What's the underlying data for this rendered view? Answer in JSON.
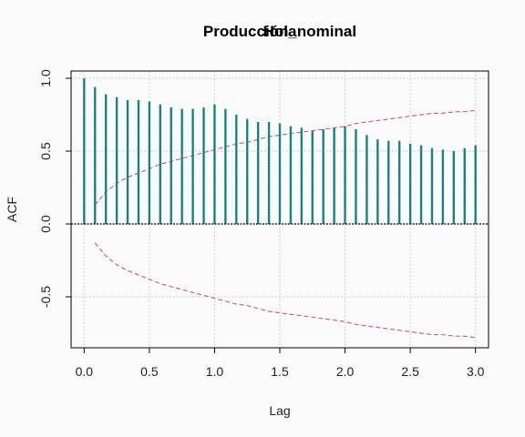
{
  "chart_data": {
    "type": "bar",
    "title": "Producción_nominal",
    "subtitle": "Hola",
    "xlabel": "Lag",
    "ylabel": "ACF",
    "xlim": [
      -0.1,
      3.1
    ],
    "ylim": [
      -0.85,
      1.05
    ],
    "grid": true,
    "x_ticks": [
      "0.0",
      "0.5",
      "1.0",
      "1.5",
      "2.0",
      "2.5",
      "3.0"
    ],
    "y_ticks": [
      "-0.5",
      "0.0",
      "0.5",
      "1.0"
    ],
    "colors": {
      "bars": "#1a8a86",
      "confidence": "#cc4466",
      "grid": "#cfcfcf"
    },
    "lags": [
      0.0,
      0.0833,
      0.1667,
      0.25,
      0.3333,
      0.4167,
      0.5,
      0.5833,
      0.6667,
      0.75,
      0.8333,
      0.9167,
      1.0,
      1.0833,
      1.1667,
      1.25,
      1.3333,
      1.4167,
      1.5,
      1.5833,
      1.6667,
      1.75,
      1.8333,
      1.9167,
      2.0,
      2.0833,
      2.1667,
      2.25,
      2.3333,
      2.4167,
      2.5,
      2.5833,
      2.6667,
      2.75,
      2.8333,
      2.9167,
      3.0
    ],
    "acf": [
      1.0,
      0.94,
      0.89,
      0.87,
      0.85,
      0.85,
      0.84,
      0.82,
      0.8,
      0.79,
      0.79,
      0.8,
      0.82,
      0.79,
      0.75,
      0.72,
      0.7,
      0.7,
      0.69,
      0.67,
      0.66,
      0.64,
      0.65,
      0.66,
      0.67,
      0.65,
      0.61,
      0.58,
      0.57,
      0.57,
      0.55,
      0.54,
      0.52,
      0.51,
      0.5,
      0.52,
      0.54
    ],
    "confidence_lags": [
      0.0833,
      0.1667,
      0.25,
      0.3333,
      0.4167,
      0.5,
      0.5833,
      0.6667,
      0.75,
      0.8333,
      0.9167,
      1.0,
      1.0833,
      1.1667,
      1.25,
      1.3333,
      1.4167,
      1.5,
      1.5833,
      1.6667,
      1.75,
      1.8333,
      1.9167,
      2.0,
      2.0833,
      2.1667,
      2.25,
      2.3333,
      2.4167,
      2.5,
      2.5833,
      2.6667,
      2.75,
      2.8333,
      2.9167,
      3.0
    ],
    "confidence_upper": [
      0.13,
      0.22,
      0.28,
      0.32,
      0.35,
      0.38,
      0.41,
      0.43,
      0.45,
      0.47,
      0.49,
      0.51,
      0.53,
      0.55,
      0.56,
      0.58,
      0.6,
      0.61,
      0.62,
      0.63,
      0.64,
      0.65,
      0.66,
      0.67,
      0.69,
      0.7,
      0.71,
      0.72,
      0.73,
      0.74,
      0.75,
      0.76,
      0.76,
      0.77,
      0.77,
      0.78
    ],
    "confidence_lower": [
      -0.13,
      -0.22,
      -0.28,
      -0.32,
      -0.35,
      -0.38,
      -0.41,
      -0.43,
      -0.45,
      -0.47,
      -0.49,
      -0.51,
      -0.53,
      -0.55,
      -0.56,
      -0.58,
      -0.6,
      -0.61,
      -0.62,
      -0.63,
      -0.64,
      -0.65,
      -0.66,
      -0.67,
      -0.69,
      -0.7,
      -0.71,
      -0.72,
      -0.73,
      -0.74,
      -0.75,
      -0.76,
      -0.76,
      -0.77,
      -0.77,
      -0.78
    ]
  }
}
